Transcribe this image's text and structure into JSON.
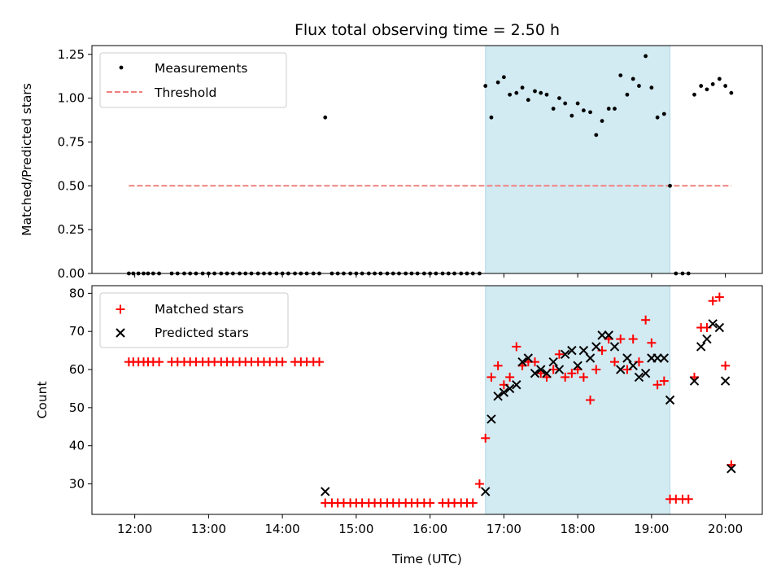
{
  "chart_data": [
    {
      "type": "scatter",
      "title": "Flux total observing time = 2.50 h",
      "ylabel": "Matched/Predicted stars",
      "xlabel": "",
      "xlim": [
        11.42,
        20.5
      ],
      "ylim": [
        0,
        1.3
      ],
      "yticks": [
        0.0,
        0.25,
        0.5,
        0.75,
        1.0,
        1.25
      ],
      "ytick_labels": [
        "0.00",
        "0.25",
        "0.50",
        "0.75",
        "1.00",
        "1.25"
      ],
      "shaded_span": [
        16.75,
        19.25
      ],
      "shaded_color": "#add8e6",
      "threshold": {
        "name": "Threshold",
        "y": 0.5,
        "x_start": 11.92,
        "x_end": 20.08,
        "color": "#f08080"
      },
      "legend_position": "top-left",
      "series": [
        {
          "name": "Measurements",
          "color": "#000000",
          "marker": "dot",
          "x": [
            11.92,
            11.98,
            12.05,
            12.12,
            12.18,
            12.25,
            12.33,
            12.5,
            12.58,
            12.67,
            12.75,
            12.83,
            12.92,
            13.0,
            13.08,
            13.17,
            13.25,
            13.33,
            13.42,
            13.5,
            13.58,
            13.67,
            13.75,
            13.83,
            13.92,
            14.0,
            14.08,
            14.17,
            14.25,
            14.33,
            14.42,
            14.5,
            14.58,
            14.67,
            14.75,
            14.83,
            14.92,
            15.0,
            15.08,
            15.17,
            15.25,
            15.33,
            15.42,
            15.5,
            15.58,
            15.67,
            15.75,
            15.83,
            15.92,
            16.0,
            16.08,
            16.17,
            16.25,
            16.33,
            16.42,
            16.5,
            16.58,
            16.67,
            16.75,
            16.83,
            16.92,
            17.0,
            17.08,
            17.17,
            17.25,
            17.33,
            17.42,
            17.5,
            17.58,
            17.67,
            17.75,
            17.83,
            17.92,
            18.0,
            18.08,
            18.17,
            18.25,
            18.33,
            18.42,
            18.5,
            18.58,
            18.67,
            18.75,
            18.83,
            18.92,
            19.0,
            19.08,
            19.17,
            19.25,
            19.33,
            19.42,
            19.5,
            19.58,
            19.67,
            19.75,
            19.83,
            19.92,
            20.0,
            20.08
          ],
          "y": [
            0,
            0,
            0,
            0,
            0,
            0,
            0,
            0,
            0,
            0,
            0,
            0,
            0,
            0,
            0,
            0,
            0,
            0,
            0,
            0,
            0,
            0,
            0,
            0,
            0,
            0,
            0,
            0,
            0,
            0,
            0,
            0,
            0.89,
            0,
            0,
            0,
            0,
            0,
            0,
            0,
            0,
            0,
            0,
            0,
            0,
            0,
            0,
            0,
            0,
            0,
            0,
            0,
            0,
            0,
            0,
            0,
            0,
            0,
            1.07,
            0.89,
            1.09,
            1.12,
            1.02,
            1.03,
            1.06,
            0.99,
            1.04,
            1.03,
            1.02,
            0.94,
            1.0,
            0.97,
            0.9,
            0.97,
            0.93,
            0.92,
            0.79,
            0.87,
            0.94,
            0.94,
            1.13,
            1.02,
            1.11,
            1.07,
            1.24,
            1.06,
            0.89,
            0.91,
            0.5,
            0,
            0,
            0,
            1.02,
            1.07,
            1.05,
            1.08,
            1.11,
            1.07,
            1.03
          ]
        }
      ]
    },
    {
      "type": "scatter",
      "title": "",
      "ylabel": "Count",
      "xlabel": "Time (UTC)",
      "xlim": [
        11.42,
        20.5
      ],
      "ylim": [
        22,
        82
      ],
      "yticks": [
        30,
        40,
        50,
        60,
        70,
        80
      ],
      "ytick_labels": [
        "30",
        "40",
        "50",
        "60",
        "70",
        "80"
      ],
      "xticks": [
        12,
        13,
        14,
        15,
        16,
        17,
        18,
        19,
        20
      ],
      "xtick_labels": [
        "12:00",
        "13:00",
        "14:00",
        "15:00",
        "16:00",
        "17:00",
        "18:00",
        "19:00",
        "20:00"
      ],
      "shaded_span": [
        16.75,
        19.25
      ],
      "shaded_color": "#add8e6",
      "legend_position": "top-left",
      "series": [
        {
          "name": "Matched stars",
          "color": "#ff0000",
          "marker": "plus",
          "x": [
            11.92,
            11.98,
            12.05,
            12.12,
            12.18,
            12.25,
            12.33,
            12.5,
            12.58,
            12.67,
            12.75,
            12.83,
            12.92,
            13.0,
            13.08,
            13.17,
            13.25,
            13.33,
            13.42,
            13.5,
            13.58,
            13.67,
            13.75,
            13.83,
            13.92,
            14.0,
            14.17,
            14.25,
            14.33,
            14.42,
            14.5,
            14.58,
            14.67,
            14.75,
            14.83,
            14.92,
            15.0,
            15.08,
            15.17,
            15.25,
            15.33,
            15.42,
            15.5,
            15.58,
            15.67,
            15.75,
            15.83,
            15.92,
            16.0,
            16.17,
            16.25,
            16.33,
            16.42,
            16.5,
            16.58,
            16.67,
            16.75,
            16.83,
            16.92,
            17.0,
            17.08,
            17.17,
            17.25,
            17.33,
            17.42,
            17.5,
            17.58,
            17.67,
            17.75,
            17.83,
            17.92,
            18.0,
            18.08,
            18.17,
            18.25,
            18.33,
            18.42,
            18.5,
            18.58,
            18.67,
            18.75,
            18.83,
            18.92,
            19.0,
            19.08,
            19.17,
            19.25,
            19.33,
            19.42,
            19.5,
            19.58,
            19.67,
            19.75,
            19.83,
            19.92,
            20.0,
            20.08
          ],
          "y": [
            62,
            62,
            62,
            62,
            62,
            62,
            62,
            62,
            62,
            62,
            62,
            62,
            62,
            62,
            62,
            62,
            62,
            62,
            62,
            62,
            62,
            62,
            62,
            62,
            62,
            62,
            62,
            62,
            62,
            62,
            62,
            25,
            25,
            25,
            25,
            25,
            25,
            25,
            25,
            25,
            25,
            25,
            25,
            25,
            25,
            25,
            25,
            25,
            25,
            25,
            25,
            25,
            25,
            25,
            25,
            30,
            42,
            58,
            61,
            56,
            58,
            66,
            61,
            62,
            62,
            59,
            58,
            60,
            64,
            58,
            59,
            60,
            58,
            52,
            60,
            65,
            68,
            62,
            68,
            60,
            68,
            62,
            73,
            67,
            56,
            57,
            26,
            26,
            26,
            26,
            58,
            71,
            71,
            78,
            79,
            61,
            35
          ]
        },
        {
          "name": "Predicted stars",
          "color": "#000000",
          "marker": "x",
          "x": [
            14.58,
            16.75,
            16.83,
            16.92,
            17.0,
            17.08,
            17.17,
            17.25,
            17.33,
            17.42,
            17.5,
            17.58,
            17.67,
            17.75,
            17.83,
            17.92,
            18.0,
            18.08,
            18.17,
            18.25,
            18.33,
            18.42,
            18.5,
            18.58,
            18.67,
            18.75,
            18.83,
            18.92,
            19.0,
            19.08,
            19.17,
            19.25,
            19.58,
            19.67,
            19.75,
            19.83,
            19.92,
            20.0,
            20.08
          ],
          "y": [
            28,
            28,
            47,
            53,
            54,
            55,
            56,
            62,
            63,
            59,
            60,
            59,
            62,
            60,
            64,
            65,
            61,
            65,
            63,
            66,
            69,
            69,
            66,
            60,
            63,
            61,
            58,
            59,
            63,
            63,
            63,
            52,
            57,
            66,
            68,
            72,
            71,
            57,
            34
          ]
        }
      ]
    }
  ]
}
